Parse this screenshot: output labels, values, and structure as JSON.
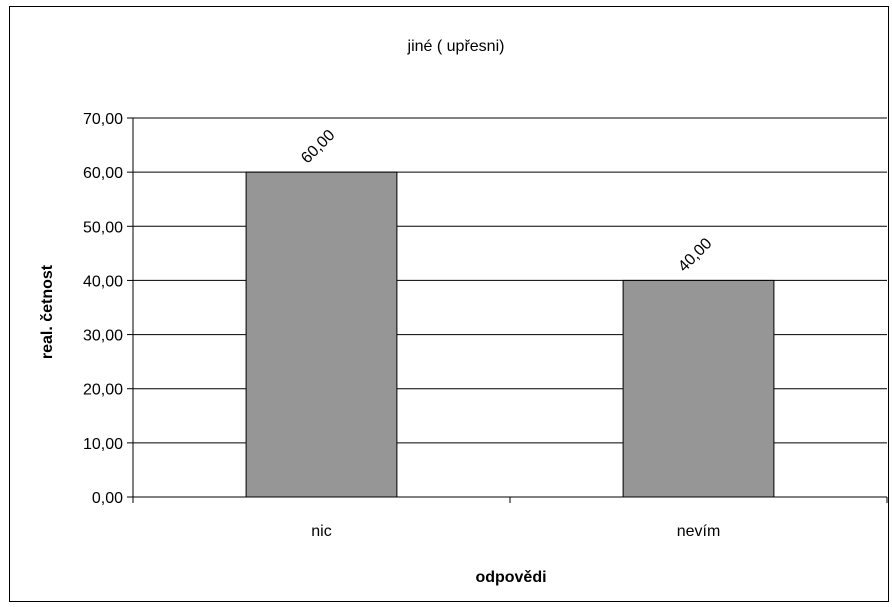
{
  "chart_data": {
    "type": "bar",
    "title": "jiné ( upřesni)",
    "xlabel": "odpovědi",
    "ylabel": "real. četnost",
    "categories": [
      "nic",
      "nevím"
    ],
    "values": [
      60.0,
      40.0
    ],
    "data_labels": [
      "60,00",
      "40,00"
    ],
    "ylim": [
      0,
      70
    ],
    "y_ticks": [
      0,
      10,
      20,
      30,
      40,
      50,
      60,
      70
    ],
    "y_tick_labels": [
      "0,00",
      "10,00",
      "20,00",
      "30,00",
      "40,00",
      "50,00",
      "60,00",
      "70,00"
    ],
    "grid": true,
    "legend": "none",
    "bar_color": "#969696",
    "bar_edge_color": "#000000"
  }
}
